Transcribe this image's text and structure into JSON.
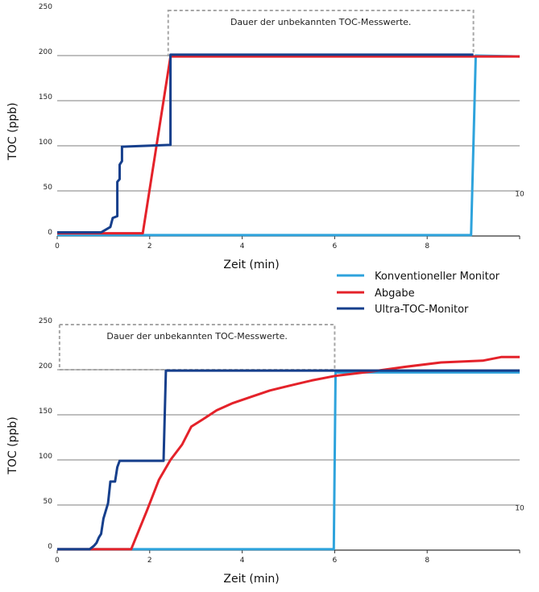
{
  "legend": [
    {
      "name": "Konventioneller Monitor",
      "color": "#2ea3dc"
    },
    {
      "name": "Abgabe",
      "color": "#e4222a"
    },
    {
      "name": "Ultra-TOC-Monitor",
      "color": "#163f8c"
    }
  ],
  "chart_data": [
    {
      "type": "line",
      "xlabel": "Zeit (min)",
      "ylabel": "TOC (ppb)",
      "xlim": [
        0,
        10
      ],
      "ylim": [
        0,
        250
      ],
      "x_tick_labels": [
        "0",
        "2",
        "4",
        "6",
        "8"
      ],
      "y_tick_labels": [
        "0",
        "50",
        "100",
        "150",
        "200",
        "250"
      ],
      "stray_label": "10",
      "annotation": {
        "text": "Dauer der unbekannten TOC-Messwerte.",
        "x_start": 2.4,
        "x_end": 9.0
      },
      "series": [
        {
          "name": "Konventioneller Monitor",
          "color": "#2ea3dc",
          "points": [
            [
              0,
              1
            ],
            [
              8.95,
              1
            ],
            [
              9.05,
              200
            ],
            [
              10,
              199
            ]
          ]
        },
        {
          "name": "Abgabe",
          "color": "#e4222a",
          "points": [
            [
              0,
              3
            ],
            [
              1.85,
              3
            ],
            [
              2.45,
              199
            ],
            [
              10,
              199
            ]
          ]
        },
        {
          "name": "Ultra-TOC-Monitor",
          "color": "#163f8c",
          "points": [
            [
              0,
              4
            ],
            [
              0.95,
              4
            ],
            [
              1.15,
              10
            ],
            [
              1.2,
              20
            ],
            [
              1.3,
              22
            ],
            [
              1.3,
              60
            ],
            [
              1.35,
              63
            ],
            [
              1.35,
              79
            ],
            [
              1.4,
              83
            ],
            [
              1.4,
              99
            ],
            [
              2.45,
              101
            ],
            [
              2.45,
              201
            ],
            [
              9.0,
              201
            ]
          ]
        }
      ]
    },
    {
      "type": "line",
      "xlabel": "Zeit (min)",
      "ylabel": "TOC (ppb)",
      "xlim": [
        0,
        10
      ],
      "ylim": [
        0,
        250
      ],
      "x_tick_labels": [
        "0",
        "2",
        "4",
        "6",
        "8"
      ],
      "y_tick_labels": [
        "0",
        "50",
        "100",
        "150",
        "200",
        "250"
      ],
      "stray_label": "10",
      "annotation": {
        "text": "Dauer der unbekannten TOC-Messwerte.",
        "x_start": 0.05,
        "x_end": 6.0
      },
      "series": [
        {
          "name": "Konventioneller Monitor",
          "color": "#2ea3dc",
          "points": [
            [
              0,
              1
            ],
            [
              5.98,
              1
            ],
            [
              6.02,
              197
            ],
            [
              10,
              197
            ]
          ]
        },
        {
          "name": "Abgabe",
          "color": "#e4222a",
          "points": [
            [
              0,
              1
            ],
            [
              1.6,
              1
            ],
            [
              1.95,
              45
            ],
            [
              2.2,
              78
            ],
            [
              2.45,
              100
            ],
            [
              2.7,
              117
            ],
            [
              2.9,
              137
            ],
            [
              3.15,
              145
            ],
            [
              3.45,
              155
            ],
            [
              3.8,
              163
            ],
            [
              4.2,
              170
            ],
            [
              4.6,
              177
            ],
            [
              5.0,
              182
            ],
            [
              5.5,
              188
            ],
            [
              6.0,
              193
            ],
            [
              6.8,
              198
            ],
            [
              7.5,
              203
            ],
            [
              8.3,
              208
            ],
            [
              9.2,
              210
            ],
            [
              9.6,
              214
            ],
            [
              10,
              214
            ]
          ]
        },
        {
          "name": "Ultra-TOC-Monitor",
          "color": "#163f8c",
          "points": [
            [
              0,
              1
            ],
            [
              0.7,
              1
            ],
            [
              0.8,
              5
            ],
            [
              0.85,
              8
            ],
            [
              0.9,
              14
            ],
            [
              0.95,
              18
            ],
            [
              1.0,
              35
            ],
            [
              1.1,
              52
            ],
            [
              1.15,
              76
            ],
            [
              1.25,
              76
            ],
            [
              1.3,
              92
            ],
            [
              1.35,
              99
            ],
            [
              2.3,
              99
            ],
            [
              2.35,
              199
            ],
            [
              10,
              199
            ]
          ]
        }
      ]
    }
  ]
}
